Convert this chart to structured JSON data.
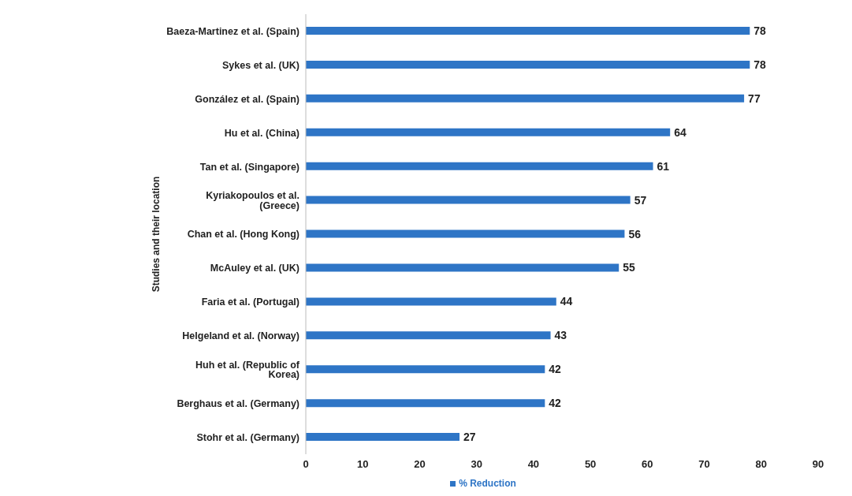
{
  "chart_data": {
    "type": "bar",
    "orientation": "horizontal",
    "ylabel": "Studies and their location",
    "categories": [
      "Baeza-Martinez  et al. (Spain)",
      "Sykes et al.  (UK)",
      "González et al. (Spain)",
      "Hu et al. (China)",
      "Tan et al.  (Singapore)",
      "Kyriakopoulos et al. (Greece)",
      "Chan et al. (Hong Kong)",
      "McAuley et al.  (UK)",
      "Faria et al. (Portugal)",
      "Helgeland et al. (Norway)",
      "Huh et al. (Republic of Korea)",
      "Berghaus et al. (Germany)",
      "Stohr et al. (Germany)"
    ],
    "series": [
      {
        "name": "% Reduction",
        "color": "#2e75c6",
        "values": [
          78,
          78,
          77,
          64,
          61,
          57,
          56,
          55,
          44,
          43,
          42,
          42,
          27
        ]
      }
    ],
    "xlim": [
      0,
      90
    ],
    "xticks": [
      0,
      10,
      20,
      30,
      40,
      50,
      60,
      70,
      80,
      90
    ],
    "grid": false,
    "legend": "bottom",
    "data_labels": true
  }
}
